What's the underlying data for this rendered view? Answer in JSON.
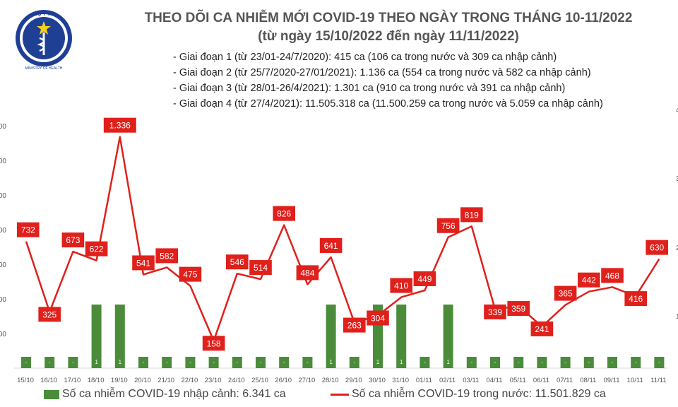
{
  "header": {
    "logo_text_top": "BỘ Y TẾ",
    "logo_text_bottom": "MINISTRY OF HEALTH",
    "title": "THEO DÕI CA NHIỄM MỚI COVID-19 THEO NGÀY TRONG THÁNG 10-11/2022",
    "subtitle": "(từ ngày 15/10/2022 đến ngày 11/11/2022)"
  },
  "notes": [
    "- Giai đoạn 1 (từ 23/01-24/7/2020): 415 ca (106 ca trong nước và 309 ca nhập cảnh)",
    "- Giai đoạn 2 (từ 25/7/2020-27/01/2021): 1.136 ca (554 ca trong nước và 582 ca nhập cảnh)",
    "- Giai đoạn 3 (từ 28/01-26/4/2021): 1.301 ca (910 ca trong nước và 391 ca nhập cảnh)",
    "- Giai đoạn 4 (từ 27/4/2021): 11.505.318 ca (11.500.259 ca trong nước và 5.059 ca nhập cảnh)"
  ],
  "colors": {
    "bar": "#4a8c3a",
    "line": "#e0201b",
    "label_bg": "#e0201b",
    "label_text": "#ffffff"
  },
  "chart_data": {
    "type": "bar+line",
    "categories": [
      "15/10",
      "16/10",
      "17/10",
      "18/10",
      "19/10",
      "20/10",
      "21/10",
      "22/10",
      "23/10",
      "24/10",
      "25/10",
      "26/10",
      "27/10",
      "28/10",
      "29/10",
      "30/10",
      "31/10",
      "01/11",
      "02/11",
      "03/11",
      "04/11",
      "05/11",
      "06/11",
      "07/11",
      "08/11",
      "09/11",
      "10/11",
      "11/11"
    ],
    "series": [
      {
        "name": "Số ca nhiễm COVID-19 nhập cảnh: 6.341 ca",
        "type": "bar",
        "axis": "right",
        "values": [
          0,
          0,
          0,
          1,
          1,
          0,
          0,
          0,
          0,
          0,
          0,
          0,
          0,
          1,
          0,
          1,
          1,
          0,
          1,
          0,
          0,
          0,
          0,
          0,
          0,
          0,
          0,
          0
        ],
        "labels": [
          "-",
          "-",
          "-",
          "1",
          "1",
          "-",
          "-",
          "-",
          "-",
          "-",
          "-",
          "-",
          "-",
          "1",
          "-",
          "1",
          "1",
          "-",
          "1",
          "-",
          "-",
          "-",
          "-",
          "-",
          "-",
          "-",
          "-",
          "-"
        ]
      },
      {
        "name": "Số ca nhiễm COVID-19 trong nước: 11.501.829 ca",
        "type": "line",
        "axis": "left",
        "values": [
          732,
          325,
          673,
          622,
          1336,
          541,
          582,
          475,
          158,
          546,
          514,
          826,
          484,
          641,
          263,
          304,
          410,
          449,
          756,
          819,
          339,
          359,
          241,
          365,
          442,
          468,
          416,
          630
        ],
        "labels": [
          "732",
          "325",
          "673",
          "622",
          "1.336",
          "541",
          "582",
          "475",
          "158",
          "546",
          "514",
          "826",
          "484",
          "641",
          "263",
          "304",
          "410",
          "449",
          "756",
          "819",
          "339",
          "359",
          "241",
          "365",
          "442",
          "468",
          "416",
          "630"
        ]
      }
    ],
    "left_axis": {
      "ticks": [
        "00",
        "00",
        "00",
        "00",
        "00",
        "00",
        "00"
      ],
      "range": [
        0,
        1400
      ]
    },
    "right_axis": {
      "ticks": [
        "4",
        "3",
        "2",
        "1"
      ],
      "range": [
        0,
        4
      ]
    }
  }
}
